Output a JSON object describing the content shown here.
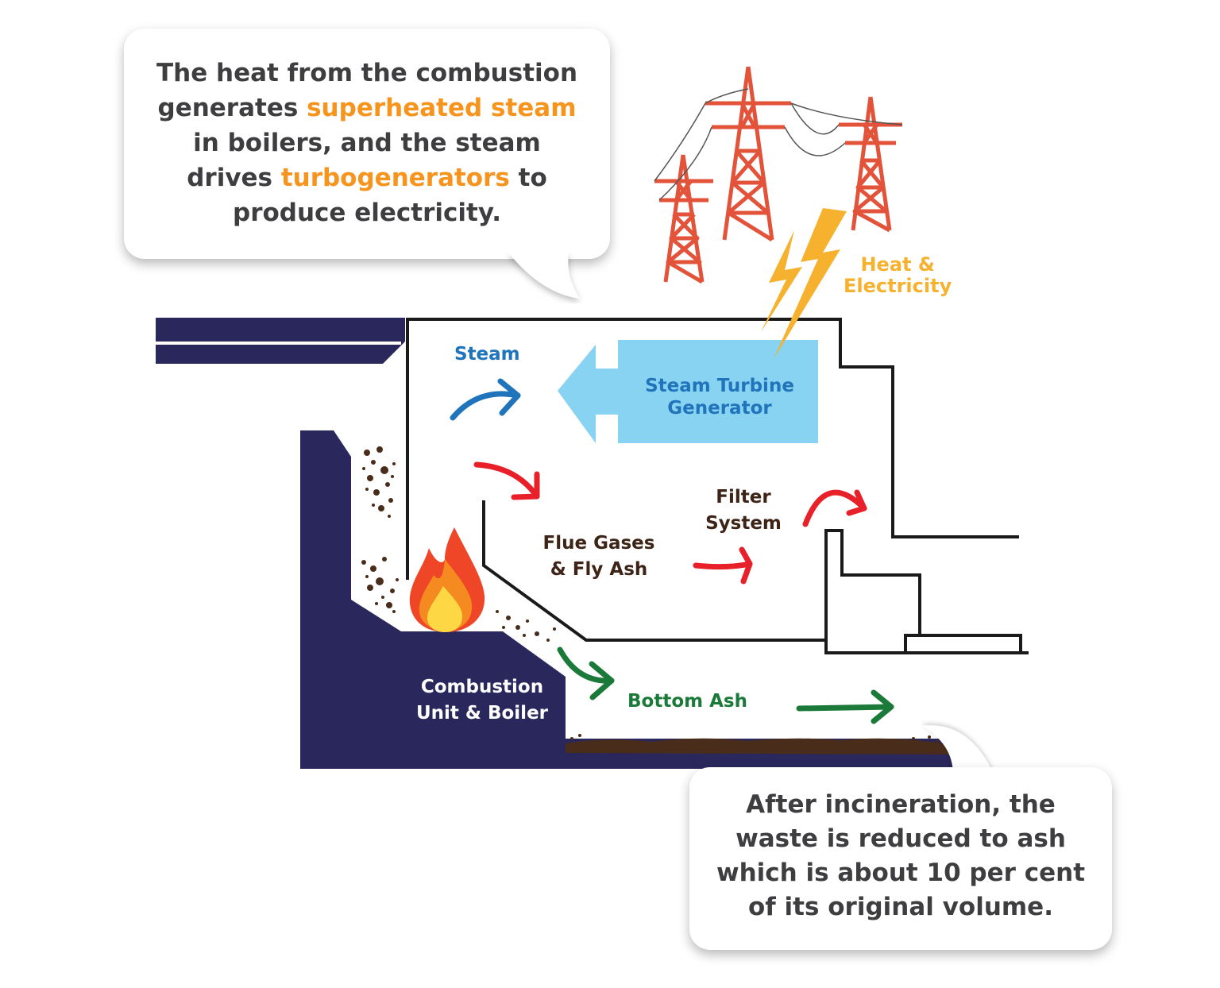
{
  "callout_top": {
    "line1": "The heat from the combustion",
    "line2_pre": "generates ",
    "line2_hl": "superheated steam",
    "line3": "in boilers, and the steam",
    "line4_pre": "drives ",
    "line4_hl": "turbogenerators",
    "line4_post": " to",
    "line5": "produce electricity."
  },
  "callout_bottom": {
    "line1": "After incineration, the",
    "line2": "waste is reduced to ash",
    "line3": "which is about 10 per cent",
    "line4": "of its original volume."
  },
  "labels": {
    "heat_line1": "Heat &",
    "heat_line2": "Electricity",
    "steam": "Steam",
    "turbine_line1": "Steam Turbine",
    "turbine_line2": "Generator",
    "filter_line1": "Filter",
    "filter_line2": "System",
    "flue_line1": "Flue Gases",
    "flue_line2": "& Fly Ash",
    "combustion_line1": "Combustion",
    "combustion_line2": "Unit & Boiler",
    "bottom_ash": "Bottom Ash"
  },
  "colors": {
    "navy": "#2a275c",
    "turbine_fill": "#88d2f2",
    "steam_blue": "#1f74bb",
    "red_arrow": "#e8202a",
    "green_arrow": "#1b7a3a",
    "orange_highlight": "#f7941d",
    "lightning": "#f6b12e",
    "tower": "#e2533a",
    "ash": "#4a2c1a"
  }
}
